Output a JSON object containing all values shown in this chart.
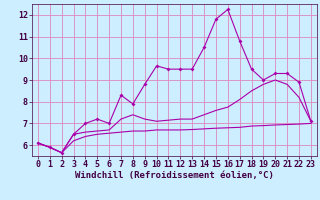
{
  "xlabel": "Windchill (Refroidissement éolien,°C)",
  "background_color": "#cceeff",
  "grid_color": "#dd88bb",
  "line_color": "#aa00aa",
  "x_hours": [
    0,
    1,
    2,
    3,
    4,
    5,
    6,
    7,
    8,
    9,
    10,
    11,
    12,
    13,
    14,
    15,
    16,
    17,
    18,
    19,
    20,
    21,
    22,
    23
  ],
  "line1_y": [
    6.1,
    5.9,
    5.65,
    6.5,
    7.0,
    7.2,
    7.0,
    8.3,
    7.9,
    8.8,
    9.65,
    9.5,
    9.5,
    9.5,
    10.5,
    11.8,
    12.25,
    10.8,
    9.5,
    9.0,
    9.3,
    9.3,
    8.9,
    7.1
  ],
  "line2_y": [
    6.1,
    5.9,
    5.65,
    6.5,
    6.6,
    6.65,
    6.7,
    7.2,
    7.4,
    7.2,
    7.1,
    7.15,
    7.2,
    7.2,
    7.4,
    7.6,
    7.75,
    8.1,
    8.5,
    8.8,
    9.0,
    8.8,
    8.2,
    7.1
  ],
  "line3_y": [
    6.1,
    5.9,
    5.65,
    6.2,
    6.4,
    6.5,
    6.55,
    6.6,
    6.65,
    6.65,
    6.7,
    6.7,
    6.7,
    6.72,
    6.75,
    6.78,
    6.8,
    6.82,
    6.88,
    6.9,
    6.93,
    6.95,
    6.97,
    7.0
  ],
  "ylim": [
    5.5,
    12.5
  ],
  "yticks": [
    6,
    7,
    8,
    9,
    10,
    11,
    12
  ],
  "xticks": [
    0,
    1,
    2,
    3,
    4,
    5,
    6,
    7,
    8,
    9,
    10,
    11,
    12,
    13,
    14,
    15,
    16,
    17,
    18,
    19,
    20,
    21,
    22,
    23
  ],
  "fontsize_label": 6.5,
  "fontsize_tick": 6
}
